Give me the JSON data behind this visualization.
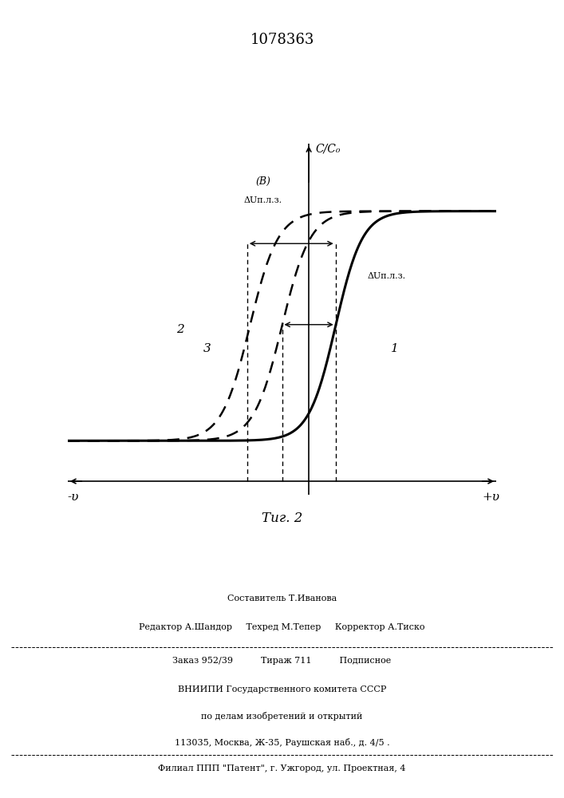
{
  "title": "1078363",
  "fig_label": "Τиг. 2",
  "xlabel_neg": "-υ",
  "xlabel_pos": "+υ",
  "ylabel": "C/C₀",
  "curve1_shift": 0.0,
  "curve2_shift": -1.5,
  "curve3_shift": -1.0,
  "background_color": "#ffffff",
  "line_color": "#000000",
  "footer_lines": [
    "Составитель Т.Иванова",
    "Редактор А.Шандор     Техред М.Тепер     Корректор А.Тиско",
    "Заказ 952/39          Тираж 711          Подписное",
    "ВНИИПИ Государственного комитета СССР",
    "по делам изобретений и открытий",
    "113035, Москва, Ж-35, Раушская наб., д. 4/5 .",
    "Филиал ППП \"Патент\", г. Ужгород, ул. Проектная, 4"
  ],
  "annotation_B": "(B)",
  "annotation_delta_top": "ΔUп.л.з.",
  "annotation_delta_right": "ΔUп.л.з.",
  "label1": "1",
  "label2": "2",
  "label3": "3"
}
